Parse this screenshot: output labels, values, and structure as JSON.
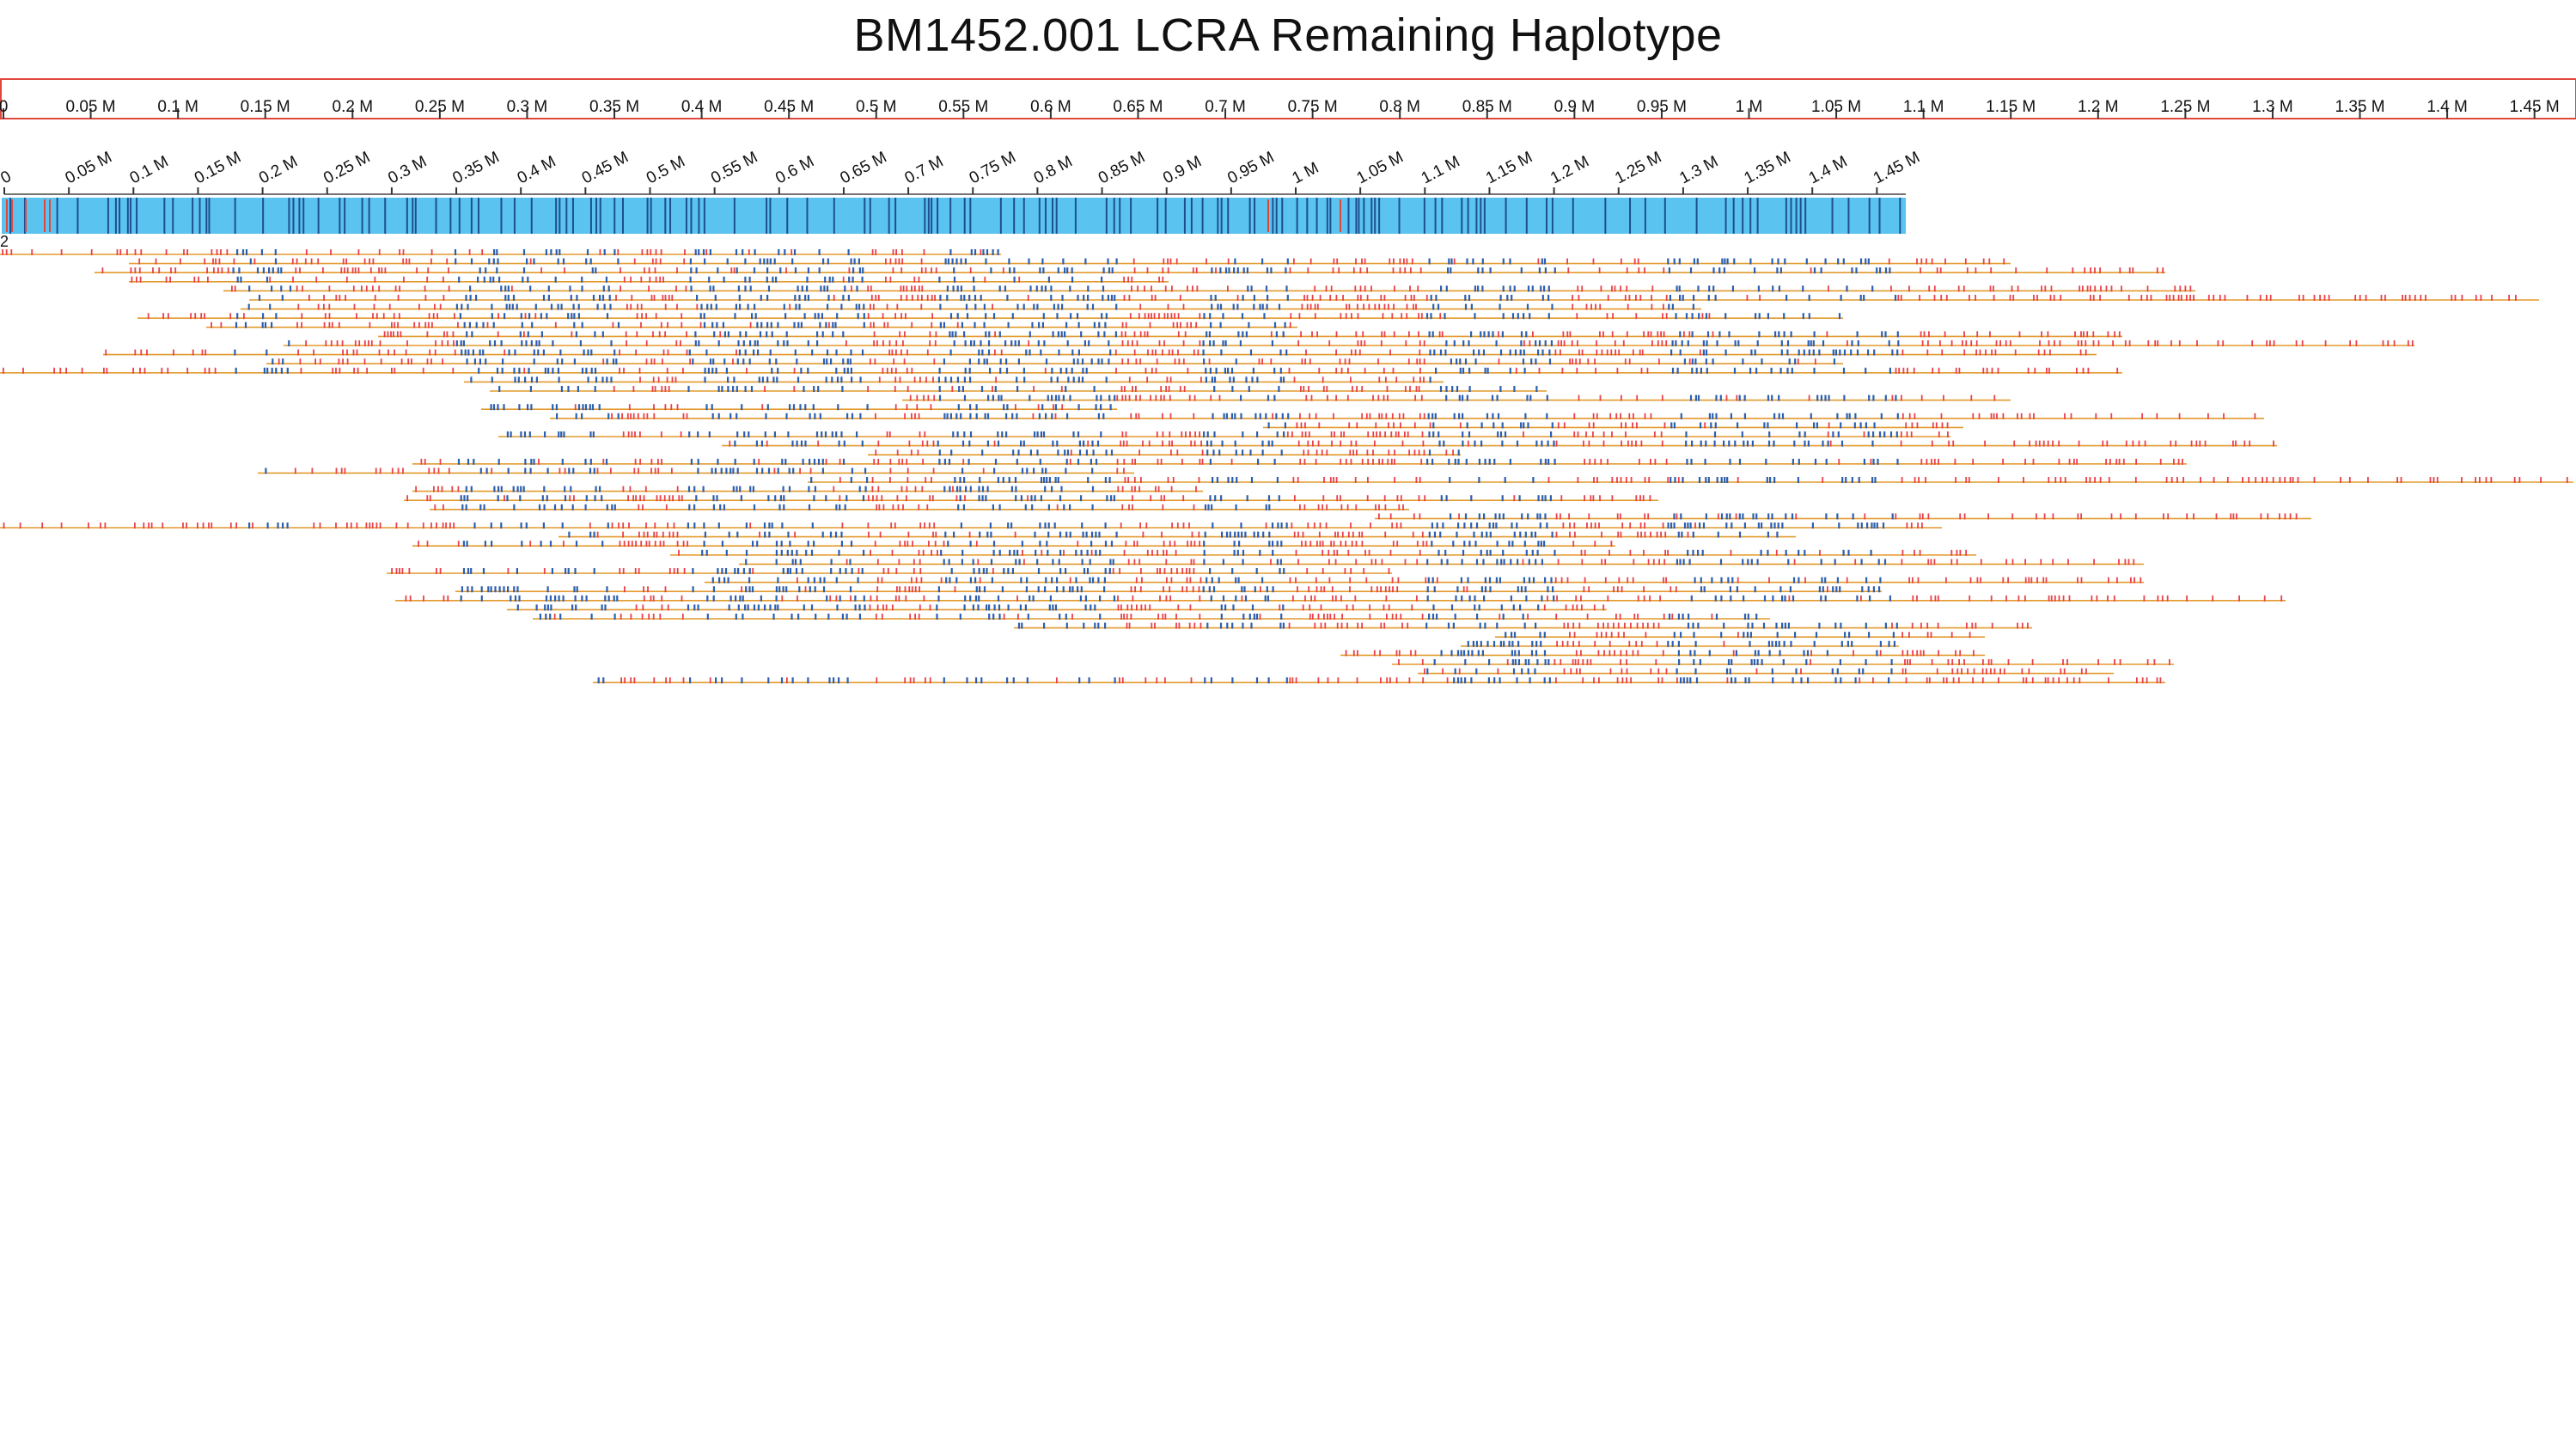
{
  "title": "BM1452.001 LCRA Remaining Haplotype",
  "top_ruler": {
    "labels": [
      "0",
      "0.05 M",
      "0.1 M",
      "0.15 M",
      "0.2 M",
      "0.25 M",
      "0.3 M",
      "0.35 M",
      "0.4 M",
      "0.45 M",
      "0.5 M",
      "0.55 M",
      "0.6 M",
      "0.65 M",
      "0.7 M",
      "0.75 M",
      "0.8 M",
      "0.85 M",
      "0.9 M",
      "0.95 M",
      "1 M",
      "1.05 M",
      "1.1 M",
      "1.15 M",
      "1.2 M",
      "1.25 M",
      "1.3 M",
      "1.35 M",
      "1.4 M",
      "1.45 M"
    ],
    "border_color": "#e0463c"
  },
  "map_ruler": {
    "labels": [
      "0",
      "0.05 M",
      "0.1 M",
      "0.15 M",
      "0.2 M",
      "0.25 M",
      "0.3 M",
      "0.35 M",
      "0.4 M",
      "0.45 M",
      "0.5 M",
      "0.55 M",
      "0.6 M",
      "0.65 M",
      "0.7 M",
      "0.75 M",
      "0.8 M",
      "0.85 M",
      "0.9 M",
      "0.95 M",
      "1 M",
      "1.05 M",
      "1.1 M",
      "1.15 M",
      "1.2 M",
      "1.25 M",
      "1.3 M",
      "1.35 M",
      "1.4 M",
      "1.45 M"
    ]
  },
  "reference_map": {
    "id_label": "2",
    "bar_color": "#5bc3ef",
    "site_color": "#1d4f91",
    "mismatch_color": "#e0463c"
  },
  "molecules": {
    "count": 48,
    "line_color": "#e39a2d",
    "aligned_site_color": "#2e5fae",
    "unaligned_site_color": "#e8424a"
  },
  "icons": [
    "none"
  ]
}
